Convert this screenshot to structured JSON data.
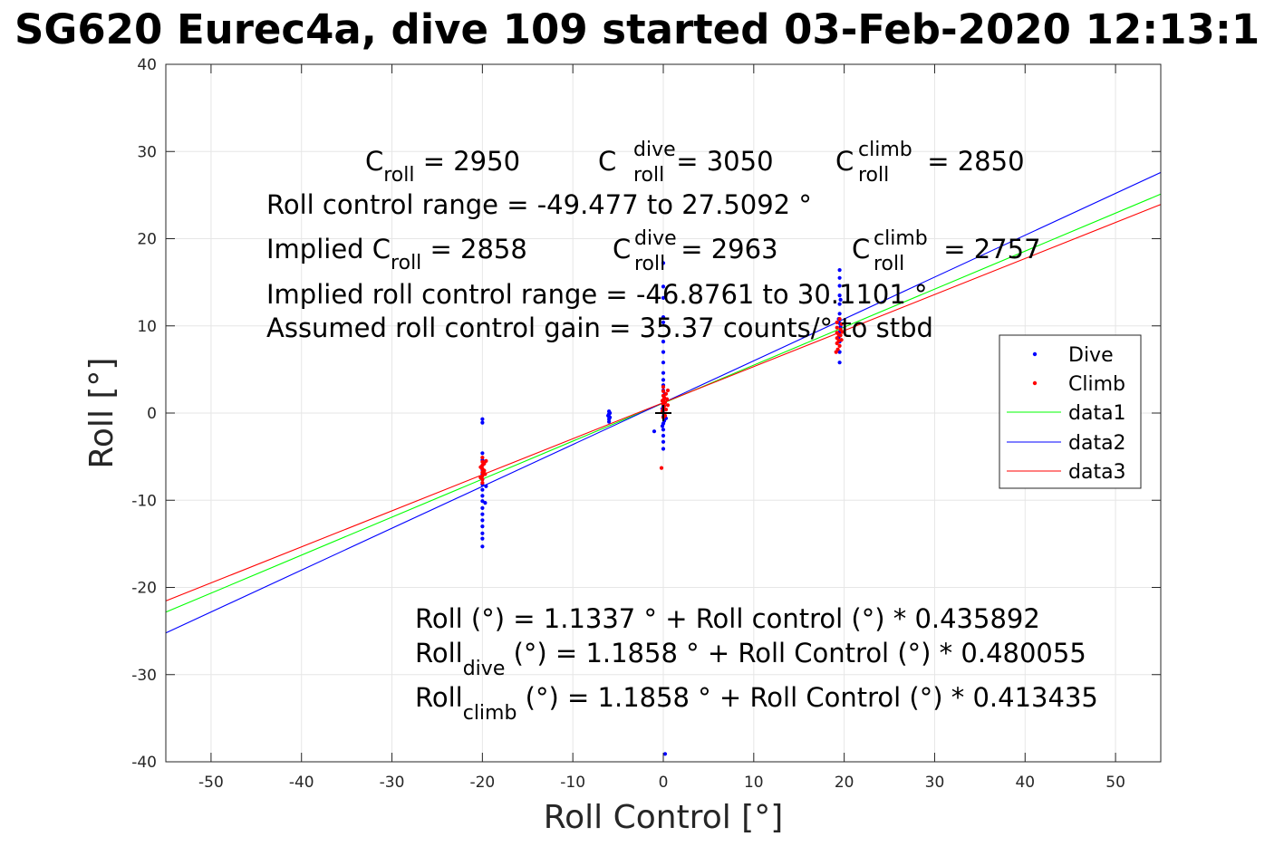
{
  "chart_data": {
    "type": "scatter",
    "title": "SG620 Eurec4a, dive 109 started 03-Feb-2020 12:13:1",
    "xlabel": "Roll Control [°]",
    "ylabel": "Roll [°]",
    "xlim": [
      -55,
      55
    ],
    "ylim": [
      -40,
      40
    ],
    "xticks": [
      -50,
      -40,
      -30,
      -20,
      -10,
      0,
      10,
      20,
      30,
      40,
      50
    ],
    "yticks": [
      -40,
      -30,
      -20,
      -10,
      0,
      10,
      20,
      30,
      40
    ],
    "grid": true,
    "legend_position": "right",
    "annotations": {
      "line1": {
        "c_roll": {
          "base": "C",
          "sub": "roll",
          "rest": " = 2950"
        },
        "c_dive": {
          "base": "C",
          "sup": "dive",
          "sub": "roll",
          "rest": " = 3050"
        },
        "c_climb": {
          "base": "C",
          "sup": "climb",
          "sub": "roll",
          "rest": " = 2850"
        }
      },
      "range": "Roll control range = -49.477 to 27.5092 °",
      "implied": {
        "prefix": "Implied ",
        "c_roll": {
          "base": "C",
          "sub": "roll",
          "rest": " = 2858"
        },
        "c_dive": {
          "base": "C",
          "sup": "dive",
          "sub": "roll",
          "rest": " = 2963"
        },
        "c_climb": {
          "base": "C",
          "sup": "climb",
          "sub": "roll",
          "rest": " = 2757"
        }
      },
      "implied_range": "Implied roll control range = -46.8761 to 30.1101 °",
      "gain": "Assumed roll control gain = 35.37 counts/° to stbd",
      "fit_all": "Roll (°) = 1.1337 ° + Roll control (°) * 0.435892",
      "fit_dive": {
        "base": "Roll",
        "sub": "dive",
        "rest": " (°) = 1.1858 ° + Roll Control (°) * 0.480055"
      },
      "fit_climb": {
        "base": "Roll",
        "sub": "climb",
        "rest": " (°) = 1.1858 ° + Roll Control (°) * 0.413435"
      }
    },
    "series": [
      {
        "name": "Dive",
        "kind": "points",
        "color": "#0000ff",
        "points": [
          [
            -20,
            -0.7
          ],
          [
            -20,
            -1.1
          ],
          [
            -20,
            -4.6
          ],
          [
            -20,
            -5.4
          ],
          [
            -20,
            -6.0
          ],
          [
            -20,
            -6.5
          ],
          [
            -20,
            -7.0
          ],
          [
            -20,
            -7.6
          ],
          [
            -20,
            -8.2
          ],
          [
            -20,
            -8.8
          ],
          [
            -20,
            -9.5
          ],
          [
            -20,
            -10.1
          ],
          [
            -20,
            -10.9
          ],
          [
            -20,
            -11.6
          ],
          [
            -20,
            -12.3
          ],
          [
            -20,
            -13.0
          ],
          [
            -20,
            -13.8
          ],
          [
            -20,
            -14.4
          ],
          [
            -20,
            -15.3
          ],
          [
            -19.7,
            -10.3
          ],
          [
            -19.6,
            -8.4
          ],
          [
            -6.0,
            0.2
          ],
          [
            -6.0,
            -0.1
          ],
          [
            -6.0,
            -0.4
          ],
          [
            -6.0,
            -0.7
          ],
          [
            -6.0,
            -1.0
          ],
          [
            -5.9,
            0.0
          ],
          [
            -5.9,
            -0.5
          ],
          [
            -6.1,
            -0.3
          ],
          [
            0,
            17.2
          ],
          [
            0,
            14.5
          ],
          [
            0,
            13.2
          ],
          [
            0,
            11.0
          ],
          [
            0,
            10.4
          ],
          [
            0,
            8.2
          ],
          [
            0,
            7.0
          ],
          [
            0,
            5.8
          ],
          [
            0,
            4.6
          ],
          [
            0,
            3.8
          ],
          [
            0,
            3.2
          ],
          [
            0,
            2.6
          ],
          [
            0,
            2.0
          ],
          [
            0,
            1.4
          ],
          [
            0,
            0.8
          ],
          [
            0,
            0.3
          ],
          [
            0,
            -0.4
          ],
          [
            0,
            -1.2
          ],
          [
            0,
            -1.9
          ],
          [
            0,
            -2.6
          ],
          [
            0,
            -3.3
          ],
          [
            0,
            -4.1
          ],
          [
            0.1,
            1.1
          ],
          [
            0.1,
            -0.9
          ],
          [
            -0.1,
            0.5
          ],
          [
            -0.1,
            -1.5
          ],
          [
            0.2,
            2.2
          ],
          [
            0.3,
            -0.6
          ],
          [
            -1.0,
            -2.1
          ],
          [
            0.2,
            -39.1
          ],
          [
            19.5,
            16.4
          ],
          [
            19.5,
            15.5
          ],
          [
            19.5,
            14.6
          ],
          [
            19.5,
            13.5
          ],
          [
            19.5,
            12.5
          ],
          [
            19.5,
            11.4
          ],
          [
            19.5,
            10.3
          ],
          [
            19.5,
            9.3
          ],
          [
            19.5,
            8.2
          ],
          [
            19.5,
            7.0
          ],
          [
            19.5,
            5.8
          ],
          [
            19.4,
            10.8
          ],
          [
            19.6,
            13.0
          ],
          [
            19.4,
            8.7
          ],
          [
            19.6,
            9.9
          ]
        ]
      },
      {
        "name": "Climb",
        "kind": "points",
        "color": "#ff0000",
        "points": [
          [
            -20,
            -5.1
          ],
          [
            -20,
            -5.6
          ],
          [
            -20,
            -6.0
          ],
          [
            -20,
            -6.4
          ],
          [
            -20,
            -6.8
          ],
          [
            -20,
            -7.2
          ],
          [
            -20,
            -7.6
          ],
          [
            -20,
            -8.0
          ],
          [
            -19.8,
            -5.8
          ],
          [
            -19.8,
            -6.6
          ],
          [
            -19.7,
            -7.0
          ],
          [
            -19.6,
            -5.5
          ],
          [
            -20.2,
            -6.2
          ],
          [
            -20.2,
            -7.4
          ],
          [
            -19.9,
            -6.9
          ],
          [
            -0.2,
            -6.3
          ],
          [
            0,
            0.0
          ],
          [
            0,
            0.5
          ],
          [
            0,
            1.0
          ],
          [
            0,
            1.5
          ],
          [
            0,
            2.0
          ],
          [
            0,
            2.5
          ],
          [
            0,
            3.0
          ],
          [
            0,
            -0.5
          ],
          [
            0.1,
            0.8
          ],
          [
            0.1,
            1.8
          ],
          [
            0.2,
            1.2
          ],
          [
            0.3,
            0.4
          ],
          [
            0.3,
            2.2
          ],
          [
            0.4,
            1.6
          ],
          [
            0.5,
            0.9
          ],
          [
            0.5,
            2.6
          ],
          [
            -0.1,
            1.4
          ],
          [
            -0.1,
            0.2
          ],
          [
            0.2,
            -0.3
          ],
          [
            19.2,
            8.0
          ],
          [
            19.2,
            8.6
          ],
          [
            19.2,
            9.2
          ],
          [
            19.2,
            9.8
          ],
          [
            19.2,
            10.4
          ],
          [
            19.3,
            7.3
          ],
          [
            19.4,
            8.3
          ],
          [
            19.4,
            9.0
          ],
          [
            19.5,
            7.7
          ],
          [
            19.6,
            8.9
          ],
          [
            19.6,
            9.6
          ],
          [
            19.7,
            10.2
          ],
          [
            19.7,
            8.4
          ],
          [
            19.8,
            9.3
          ],
          [
            19.1,
            7.0
          ],
          [
            19.5,
            10.8
          ]
        ]
      },
      {
        "name": "data1",
        "kind": "line",
        "color": "#00ff00",
        "x": [
          -55,
          55
        ],
        "y": [
          -22.84,
          25.11
        ]
      },
      {
        "name": "data2",
        "kind": "line",
        "color": "#0000ff",
        "x": [
          -55,
          55
        ],
        "y": [
          -25.22,
          27.59
        ]
      },
      {
        "name": "data3",
        "kind": "line",
        "color": "#ff0000",
        "x": [
          -55,
          55
        ],
        "y": [
          -21.55,
          23.93
        ]
      }
    ],
    "marker": {
      "symbol": "+",
      "x": 0,
      "y": 0,
      "color": "#000000"
    }
  }
}
